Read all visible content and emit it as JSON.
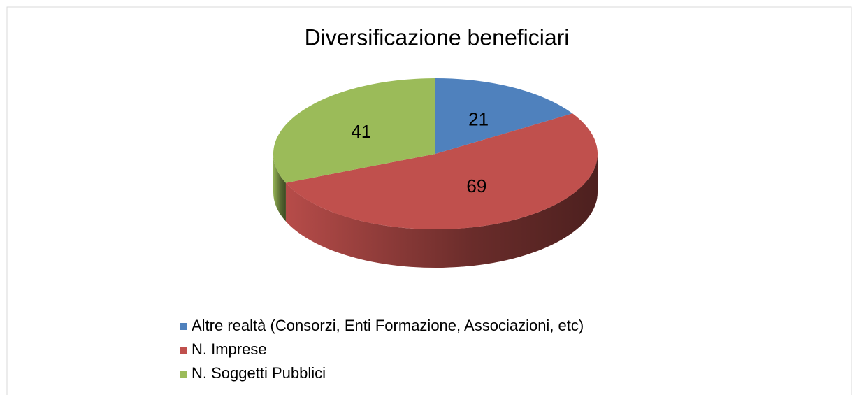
{
  "chart_data": {
    "type": "pie",
    "title": "Diversificazione beneficiari",
    "categories": [
      "Altre realtà (Consorzi,  Enti Formazione, Associazioni, etc)",
      "N. Imprese",
      "N. Soggetti Pubblici"
    ],
    "values": [
      21,
      69,
      41
    ],
    "colors": [
      "#4f81bd",
      "#c0504d",
      "#9bbb59"
    ],
    "legend": "bottom"
  }
}
